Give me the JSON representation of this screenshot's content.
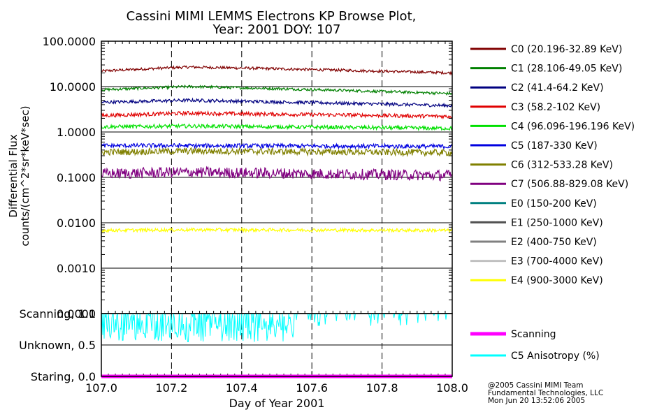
{
  "chart_data": {
    "type": "line",
    "title_line1": "Cassini MIMI LEMMS Electrons KP Browse Plot,",
    "title_line2": "Year: 2001 DOY: 107",
    "xlabel": "Day of Year 2001",
    "ylabel_line1": "Differential Flux",
    "ylabel_line2": "counts/(cm^2*sr*keV*sec)",
    "xlim": [
      107.0,
      108.0
    ],
    "x_ticks": [
      "107.0",
      "107.2",
      "107.4",
      "107.6",
      "107.8",
      "108.0"
    ],
    "flux_panel": {
      "scale": "log",
      "ylim": [
        0.0001,
        100.0
      ],
      "y_ticks": [
        "100.0000",
        "10.0000",
        "1.0000",
        "0.1000",
        "0.0100",
        "0.0010",
        "0.0001"
      ],
      "series": [
        {
          "name": "C0 (20.196-32.89 KeV)",
          "color": "#800000",
          "start": 22.0,
          "peak": 27.0,
          "end": 20.0,
          "noise": 0.05
        },
        {
          "name": "C1 (28.106-49.05 KeV)",
          "color": "#008000",
          "start": 8.5,
          "peak": 10.0,
          "end": 7.0,
          "noise": 0.05
        },
        {
          "name": "C2 (41.4-64.2 KeV)",
          "color": "#000080",
          "start": 4.5,
          "peak": 5.0,
          "end": 3.8,
          "noise": 0.06
        },
        {
          "name": "C3 (58.2-102 KeV)",
          "color": "#e00000",
          "start": 2.3,
          "peak": 2.6,
          "end": 2.2,
          "noise": 0.07
        },
        {
          "name": "C4 (96.096-196.196 KeV)",
          "color": "#00e000",
          "start": 1.3,
          "peak": 1.35,
          "end": 1.2,
          "noise": 0.07
        },
        {
          "name": "C5 (187-330 KeV)",
          "color": "#0000e0",
          "start": 0.5,
          "peak": 0.5,
          "end": 0.48,
          "noise": 0.08
        },
        {
          "name": "C6 (312-533.28 KeV)",
          "color": "#808000",
          "start": 0.36,
          "peak": 0.38,
          "end": 0.35,
          "noise": 0.12
        },
        {
          "name": "C7 (506.88-829.08 KeV)",
          "color": "#800080",
          "start": 0.12,
          "peak": 0.13,
          "end": 0.11,
          "noise": 0.2
        },
        {
          "name": "E0 (150-200 KeV)",
          "color": "#008080",
          "start": null,
          "peak": null,
          "end": null,
          "noise": 0
        },
        {
          "name": "E1 (250-1000 KeV)",
          "color": "#505050",
          "start": null,
          "peak": null,
          "end": null,
          "noise": 0
        },
        {
          "name": "E2 (400-750 KeV)",
          "color": "#808080",
          "start": null,
          "peak": null,
          "end": null,
          "noise": 0
        },
        {
          "name": "E3 (700-4000 KeV)",
          "color": "#c0c0c0",
          "start": null,
          "peak": null,
          "end": null,
          "noise": 0
        },
        {
          "name": "E4 (900-3000 KeV)",
          "color": "#ffff00",
          "start": 0.0068,
          "peak": 0.007,
          "end": 0.0068,
          "noise": 0.06
        }
      ]
    },
    "status_panel": {
      "ylim": [
        0.0,
        1.0
      ],
      "y_ticks": [
        "Scanning, 1.0",
        "Unknown, 0.5",
        "Staring, 0.0"
      ],
      "series": [
        {
          "name": "Scanning",
          "color": "#ff00ff",
          "value": 0.0
        },
        {
          "name": "C5 Anisotropy (%)",
          "color": "#00ffff",
          "baseline": 1.0
        }
      ]
    }
  },
  "footer": {
    "line1": "@2005 Cassini MIMI Team",
    "line2": "Fundamental Technologies, LLC",
    "line3": "Mon Jun 20 13:52:06 2005"
  }
}
